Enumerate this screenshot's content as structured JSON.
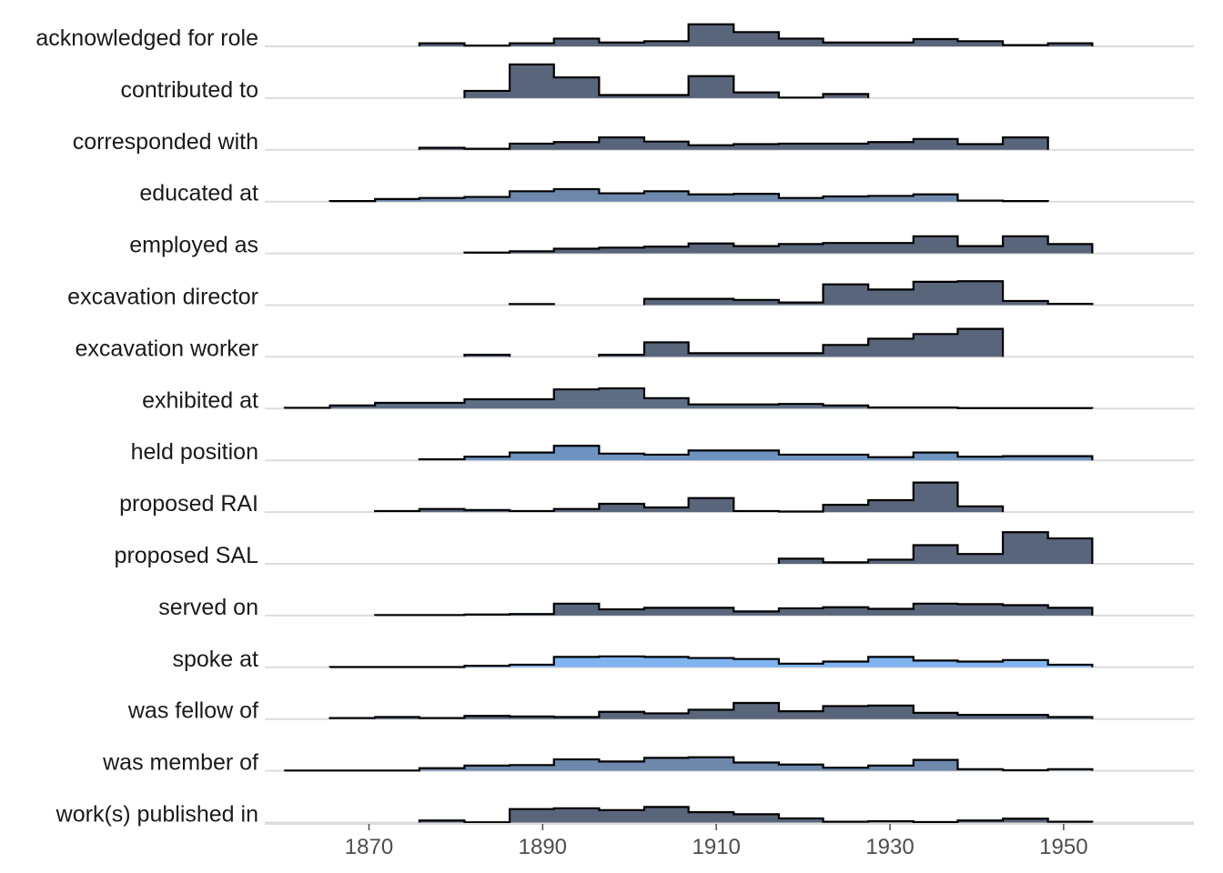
{
  "chart_data": {
    "type": "ridgeline",
    "title": "",
    "xlabel": "",
    "ylabel": "",
    "xlim": [
      1858,
      1965
    ],
    "x_ticks": [
      1870,
      1890,
      1910,
      1930,
      1950
    ],
    "bin_edges": [
      1860.3,
      1865.5,
      1870.7,
      1875.8,
      1881.0,
      1886.2,
      1891.3,
      1896.5,
      1901.7,
      1906.8,
      1912.0,
      1917.2,
      1922.3,
      1927.5,
      1932.7,
      1937.8,
      1943.0,
      1948.2,
      1953.3
    ],
    "series": [
      {
        "name": "acknowledged for role",
        "color": "#59657a",
        "values": [
          null,
          null,
          null,
          0.12,
          0.03,
          0.12,
          0.3,
          0.15,
          0.2,
          0.85,
          0.55,
          0.3,
          0.15,
          0.15,
          0.28,
          0.2,
          0.05,
          0.12
        ]
      },
      {
        "name": "contributed to",
        "color": "#59657a",
        "values": [
          null,
          null,
          null,
          null,
          0.28,
          1.3,
          0.8,
          0.12,
          0.12,
          0.85,
          0.22,
          0.02,
          0.16,
          null,
          null,
          null,
          null,
          null
        ]
      },
      {
        "name": "corresponded with",
        "color": "#59657a",
        "values": [
          null,
          null,
          null,
          0.08,
          0.04,
          0.24,
          0.3,
          0.48,
          0.32,
          0.18,
          0.22,
          0.24,
          0.24,
          0.3,
          0.42,
          0.22,
          0.48,
          null
        ]
      },
      {
        "name": "educated at",
        "color": "#6e88ab",
        "values": [
          null,
          0.02,
          0.1,
          0.14,
          0.18,
          0.4,
          0.48,
          0.32,
          0.4,
          0.28,
          0.3,
          0.14,
          0.2,
          0.22,
          0.28,
          0.04,
          0.02,
          null
        ]
      },
      {
        "name": "employed as",
        "color": "#59657a",
        "values": [
          null,
          null,
          null,
          null,
          0.03,
          0.08,
          0.18,
          0.22,
          0.26,
          0.38,
          0.28,
          0.36,
          0.4,
          0.4,
          0.66,
          0.28,
          0.66,
          0.36
        ]
      },
      {
        "name": "excavation director",
        "color": "#59657a",
        "values": [
          null,
          null,
          null,
          null,
          null,
          0.04,
          null,
          null,
          0.24,
          0.24,
          0.2,
          0.1,
          0.8,
          0.6,
          0.9,
          0.92,
          0.16,
          0.05
        ]
      },
      {
        "name": "excavation worker",
        "color": "#59657a",
        "values": [
          null,
          null,
          null,
          null,
          0.08,
          null,
          null,
          0.08,
          0.56,
          0.14,
          0.14,
          0.14,
          0.46,
          0.7,
          0.88,
          1.08,
          null,
          null
        ]
      },
      {
        "name": "exhibited at",
        "color": "#5e6e85",
        "values": [
          0.03,
          0.12,
          0.22,
          0.22,
          0.36,
          0.36,
          0.74,
          0.78,
          0.4,
          0.16,
          0.16,
          0.18,
          0.12,
          0.04,
          0.04,
          0.02,
          0.02,
          0.02
        ]
      },
      {
        "name": "held position",
        "color": "#6f93c1",
        "values": [
          null,
          null,
          null,
          0.04,
          0.14,
          0.3,
          0.56,
          0.26,
          0.22,
          0.38,
          0.38,
          0.22,
          0.22,
          0.12,
          0.3,
          0.14,
          0.16,
          0.16
        ]
      },
      {
        "name": "proposed RAI",
        "color": "#59657a",
        "values": [
          null,
          null,
          0.04,
          0.12,
          0.08,
          0.04,
          0.12,
          0.32,
          0.18,
          0.54,
          0.04,
          0.02,
          0.28,
          0.46,
          1.14,
          0.22,
          null,
          null
        ]
      },
      {
        "name": "proposed SAL",
        "color": "#59657a",
        "values": [
          null,
          null,
          null,
          null,
          null,
          null,
          null,
          null,
          null,
          null,
          null,
          0.2,
          0.06,
          0.16,
          0.72,
          0.38,
          1.22,
          0.98
        ]
      },
      {
        "name": "served on",
        "color": "#59657a",
        "values": [
          null,
          null,
          0.02,
          0.02,
          0.04,
          0.06,
          0.46,
          0.24,
          0.3,
          0.3,
          0.16,
          0.28,
          0.32,
          0.26,
          0.46,
          0.44,
          0.4,
          0.3
        ]
      },
      {
        "name": "spoke at",
        "color": "#7fb4ef",
        "values": [
          null,
          0.01,
          0.01,
          0.01,
          0.06,
          0.1,
          0.4,
          0.42,
          0.4,
          0.36,
          0.32,
          0.14,
          0.22,
          0.4,
          0.26,
          0.22,
          0.28,
          0.1
        ]
      },
      {
        "name": "was fellow of",
        "color": "#59657a",
        "values": [
          null,
          0.04,
          0.08,
          0.04,
          0.12,
          0.1,
          0.08,
          0.28,
          0.22,
          0.36,
          0.62,
          0.3,
          0.5,
          0.52,
          0.24,
          0.16,
          0.16,
          0.08
        ]
      },
      {
        "name": "was member of",
        "color": "#6e88ab",
        "values": [
          0.01,
          0.01,
          0.01,
          0.1,
          0.2,
          0.22,
          0.44,
          0.36,
          0.5,
          0.52,
          0.32,
          0.24,
          0.12,
          0.2,
          0.42,
          0.06,
          0.02,
          0.06
        ]
      },
      {
        "name": "work(s) published in",
        "color": "#59657a",
        "values": [
          null,
          null,
          null,
          0.08,
          0.01,
          0.52,
          0.55,
          0.48,
          0.6,
          0.4,
          0.32,
          0.16,
          0.03,
          0.05,
          0.02,
          0.08,
          0.15,
          0.03
        ]
      }
    ]
  }
}
